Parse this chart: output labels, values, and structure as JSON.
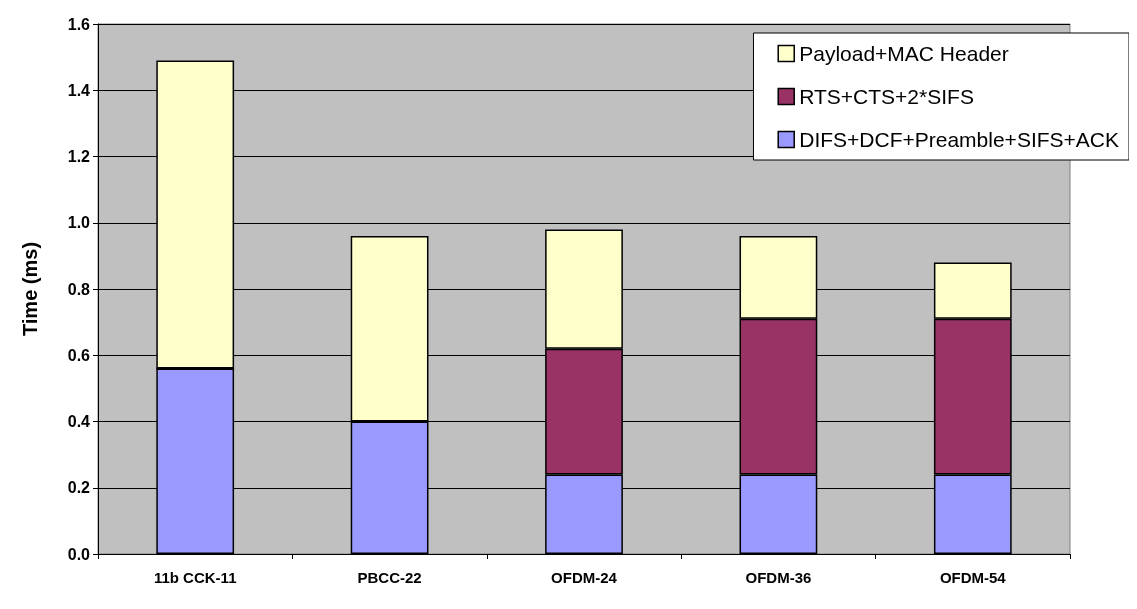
{
  "chart_data": {
    "type": "bar",
    "ylabel": "Time (ms)",
    "categories": [
      "11b CCK-11",
      "PBCC-22",
      "OFDM-24",
      "OFDM-36",
      "OFDM-54"
    ],
    "stacked": true,
    "series": [
      {
        "name": "DIFS+DCF+Preamble+SIFS+ACK",
        "color": "#9999ff",
        "values": [
          0.56,
          0.4,
          0.24,
          0.24,
          0.24
        ]
      },
      {
        "name": "RTS+CTS+2*SIFS",
        "color": "#993366",
        "values": [
          0,
          0,
          0.38,
          0.47,
          0.47
        ]
      },
      {
        "name": "Payload+MAC Header",
        "color": "#ffffcc",
        "values": [
          0.93,
          0.56,
          0.36,
          0.25,
          0.17
        ]
      }
    ],
    "ylim": [
      0,
      1.6
    ],
    "yticks": [
      {
        "value": 0,
        "label": "0.0"
      },
      0.2,
      0.4,
      0.6,
      0.8,
      {
        "value": 1,
        "label": "1.0"
      },
      1.2,
      1.4,
      1.6
    ],
    "grid": "y",
    "legend": "top right"
  }
}
